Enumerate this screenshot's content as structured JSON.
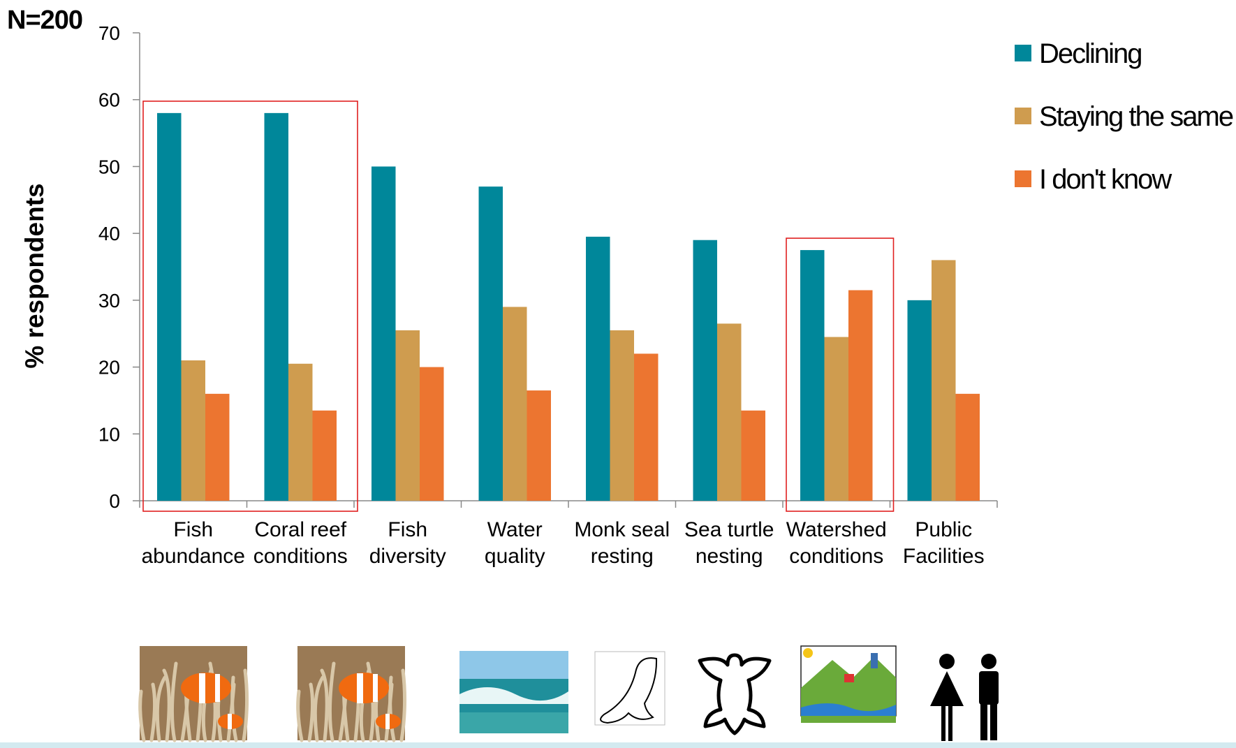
{
  "sample_label": "N=200",
  "chart_data": {
    "type": "bar",
    "title": "",
    "xlabel": "",
    "ylabel": "% respondents",
    "ylim": [
      0,
      70
    ],
    "yticks": [
      0,
      10,
      20,
      30,
      40,
      50,
      60,
      70
    ],
    "grid": false,
    "legend_position": "top-right",
    "categories": [
      [
        "Fish",
        "abundance"
      ],
      [
        "Coral reef",
        "conditions"
      ],
      [
        "Fish",
        "diversity"
      ],
      [
        "Water",
        "quality"
      ],
      [
        "Monk seal",
        "resting"
      ],
      [
        "Sea turtle",
        "nesting"
      ],
      [
        "Watershed",
        "conditions"
      ],
      [
        "Public",
        "Facilities"
      ]
    ],
    "series": [
      {
        "name": "Declining",
        "color": "#00879a",
        "values": [
          58,
          58,
          50,
          47,
          39.5,
          39,
          37.5,
          30
        ]
      },
      {
        "name": "Staying the same",
        "color": "#cf9c4f",
        "values": [
          21,
          20.5,
          25.5,
          29,
          25.5,
          26.5,
          24.5,
          36
        ]
      },
      {
        "name": "I don't know",
        "color": "#ec7530",
        "values": [
          16,
          13.5,
          20,
          16.5,
          22,
          13.5,
          31.5,
          16
        ]
      }
    ],
    "highlight_boxes": [
      {
        "categories": [
          0,
          1
        ],
        "color": "#e02020"
      },
      {
        "categories": [
          6,
          6
        ],
        "color": "#e02020"
      }
    ],
    "category_icons": [
      "clownfish-photo",
      "clownfish-photo",
      "ocean-wave-photo",
      "monk-seal-icon",
      "sea-turtle-icon",
      "watershed-illustration",
      "",
      "restroom-people-icon"
    ]
  }
}
